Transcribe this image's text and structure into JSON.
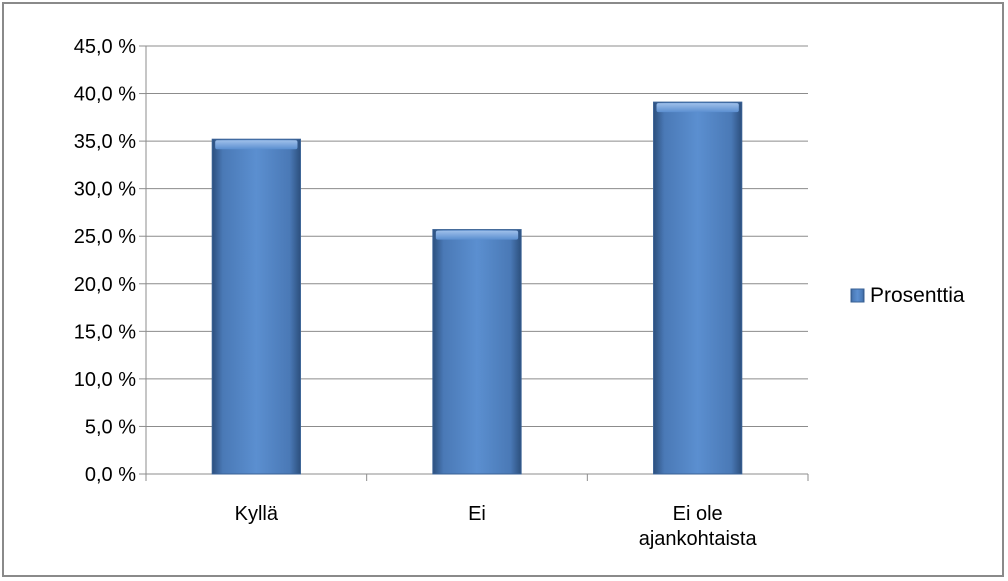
{
  "chart_data": {
    "type": "bar",
    "categories": [
      [
        "Kyllä"
      ],
      [
        "Ei"
      ],
      [
        "Ei ole",
        "ajankohtaista"
      ]
    ],
    "series": [
      {
        "name": "Prosenttia",
        "values": [
          35.2,
          25.7,
          39.1
        ],
        "color": "#4F81BD"
      }
    ],
    "title": "",
    "xlabel": "",
    "ylabel": "",
    "ylim": [
      0,
      45
    ],
    "y_ticks": [
      0,
      5,
      10,
      15,
      20,
      25,
      30,
      35,
      40,
      45
    ],
    "y_tick_labels": [
      "0,0 %",
      "5,0 %",
      "10,0 %",
      "15,0 %",
      "20,0 %",
      "25,0 %",
      "30,0 %",
      "35,0 %",
      "40,0 %",
      "45,0 %"
    ],
    "grid": true,
    "legend_position": "right"
  }
}
